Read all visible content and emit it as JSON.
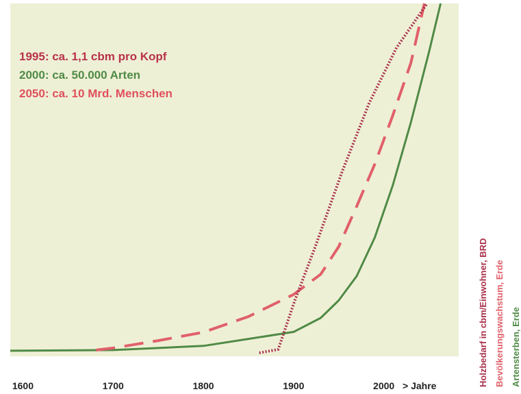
{
  "chart_data": {
    "type": "line",
    "annotations": [
      {
        "text": "1995: ca. 1,1 cbm pro Kopf",
        "color": "#b83248"
      },
      {
        "text": "2000: ca. 50.000 Arten",
        "color": "#4f8a45"
      },
      {
        "text": "2050: ca. 10 Mrd. Menschen",
        "color": "#e0505c"
      }
    ],
    "xlabel": "> Jahre",
    "xlim": [
      1586,
      2083
    ],
    "xticks": [
      1600,
      1700,
      1800,
      1900,
      2000
    ],
    "ylim": [
      0,
      100
    ],
    "series": [
      {
        "name": "Holzbedarf in cbm/Einwohner, BRD",
        "color": "#a8304a",
        "dash": "dotted",
        "x": [
          1862,
          1883,
          1901,
          1924,
          1954,
          1984,
          2014,
          2048
        ],
        "values": [
          0,
          1,
          14.7,
          30.4,
          52,
          71.6,
          87.3,
          100
        ]
      },
      {
        "name": "Bevölkerungswachstum, Erde",
        "color": "#e0606a",
        "dash": "dashed",
        "x": [
          1681,
          1700,
          1750,
          1800,
          1850,
          1900,
          1930,
          1950,
          1970,
          1990,
          2010,
          2030,
          2045
        ],
        "values": [
          0.8,
          1.4,
          3.5,
          5.9,
          10.4,
          16.7,
          22.5,
          30.4,
          42,
          54,
          68,
          83,
          100
        ]
      },
      {
        "name": "Artensterben, Erde",
        "color": "#4f8a45",
        "dash": "solid",
        "x": [
          1586,
          1700,
          1800,
          1850,
          1900,
          1930,
          1950,
          1970,
          1990,
          2010,
          2030,
          2050,
          2063
        ],
        "values": [
          0.6,
          0.8,
          2,
          4,
          6,
          10,
          15,
          22,
          33,
          48,
          66,
          86,
          100
        ]
      }
    ]
  }
}
